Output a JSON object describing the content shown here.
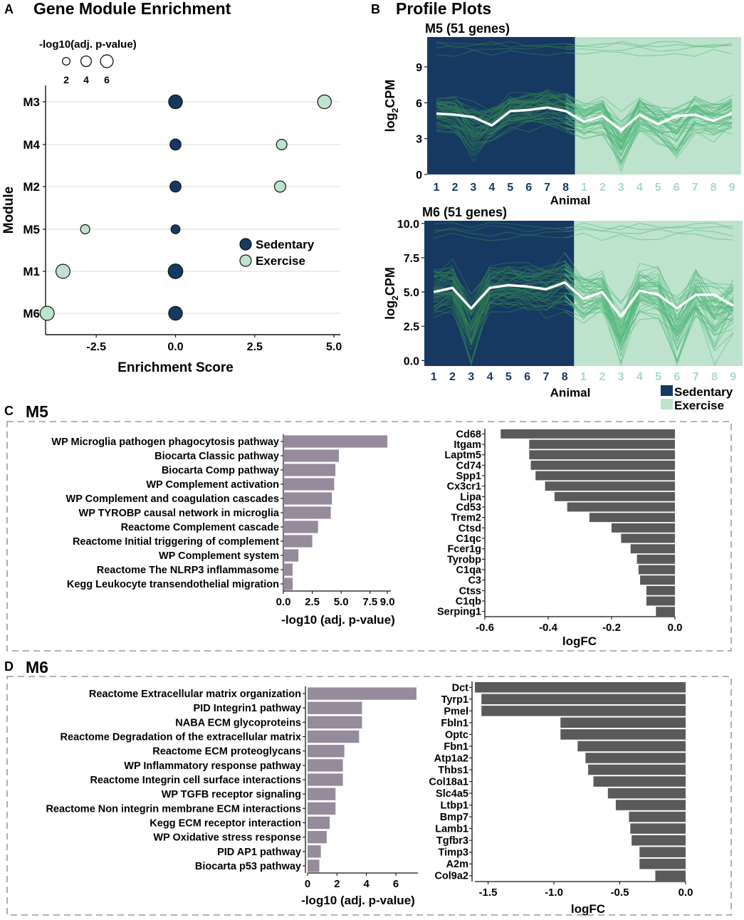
{
  "colors": {
    "sedentary": "#173861",
    "exercise": "#bde3cd",
    "line_sed": "#2f7d54",
    "line_ex": "#52b77a",
    "mean": "#ffffff",
    "pathway_bar": "#958b9c",
    "logfc_bar": "#5a5a5a",
    "grid": "#e6e6e6"
  },
  "panels": {
    "a": {
      "letter": "A",
      "title": "Gene Module Enrichment"
    },
    "b": {
      "letter": "B",
      "title": "Profile Plots"
    },
    "c": {
      "letter": "C",
      "title": "M5"
    },
    "d": {
      "letter": "D",
      "title": "M6"
    }
  },
  "chart_data": [
    {
      "id": "enrichment",
      "type": "scatter",
      "title": "Gene Module Enrichment",
      "xlabel": "Enrichment Score",
      "ylabel": "Module",
      "xlim": [
        -4.1,
        5.2
      ],
      "xticks": [
        "-2.5",
        "0.0",
        "2.5",
        "5.0"
      ],
      "xtick_values": [
        -2.5,
        0,
        2.5,
        5
      ],
      "categories": [
        "M3",
        "M4",
        "M2",
        "M5",
        "M1",
        "M6"
      ],
      "size_legend": {
        "title": "-log10(adj. p-value)",
        "labels": [
          "2",
          "4",
          "6"
        ],
        "values": [
          2,
          4,
          6
        ]
      },
      "legend": {
        "entries": [
          "Sedentary",
          "Exercise"
        ],
        "position": "right-middle"
      },
      "series": [
        {
          "name": "Sedentary",
          "points": [
            {
              "module": "M3",
              "score": 0,
              "neglog10p": 7.0
            },
            {
              "module": "M4",
              "score": 0,
              "neglog10p": 4.4
            },
            {
              "module": "M2",
              "score": 0,
              "neglog10p": 4.4
            },
            {
              "module": "M5",
              "score": 0,
              "neglog10p": 2.8
            },
            {
              "module": "M1",
              "score": 0,
              "neglog10p": 8.0
            },
            {
              "module": "M6",
              "score": 0,
              "neglog10p": 7.0
            }
          ]
        },
        {
          "name": "Exercise",
          "points": [
            {
              "module": "M3",
              "score": 4.7,
              "neglog10p": 7.0
            },
            {
              "module": "M4",
              "score": 3.35,
              "neglog10p": 4.0
            },
            {
              "module": "M2",
              "score": 3.3,
              "neglog10p": 4.6
            },
            {
              "module": "M5",
              "score": -2.85,
              "neglog10p": 3.0
            },
            {
              "module": "M1",
              "score": -3.55,
              "neglog10p": 7.5
            },
            {
              "module": "M6",
              "score": -4.05,
              "neglog10p": 7.5
            }
          ]
        }
      ]
    },
    {
      "id": "m5_profile",
      "type": "line",
      "title": "M5 (51 genes)",
      "xlabel": "Animal",
      "ylabel_main": "log",
      "ylabel_sub": "2",
      "ylabel_end": "CPM",
      "ylim": [
        0,
        11.5
      ],
      "yticks": [
        "0",
        "3",
        "6",
        "9"
      ],
      "ytick_values": [
        0,
        3,
        6,
        9
      ],
      "categories": [
        "1",
        "2",
        "3",
        "4",
        "5",
        "6",
        "7",
        "8",
        "1",
        "2",
        "3",
        "4",
        "5",
        "6",
        "7",
        "8",
        "9"
      ],
      "groups": [
        "Sedentary",
        "Sedentary",
        "Sedentary",
        "Sedentary",
        "Sedentary",
        "Sedentary",
        "Sedentary",
        "Sedentary",
        "Exercise",
        "Exercise",
        "Exercise",
        "Exercise",
        "Exercise",
        "Exercise",
        "Exercise",
        "Exercise",
        "Exercise"
      ],
      "mean": [
        5.1,
        5.0,
        4.8,
        4.1,
        5.3,
        5.4,
        5.6,
        5.3,
        4.4,
        4.9,
        3.7,
        5.0,
        4.2,
        4.9,
        5.0,
        4.5,
        5.1
      ],
      "gene_count": 51
    },
    {
      "id": "m6_profile",
      "type": "line",
      "title": "M6 (51 genes)",
      "xlabel": "Animal",
      "ylabel_main": "log",
      "ylabel_sub": "2",
      "ylabel_end": "CPM",
      "ylim": [
        -0.4,
        10.2
      ],
      "yticks": [
        "0.0",
        "2.5",
        "5.0",
        "7.5",
        "10.0"
      ],
      "ytick_values": [
        0,
        2.5,
        5,
        7.5,
        10
      ],
      "categories": [
        "1",
        "2",
        "3",
        "4",
        "5",
        "6",
        "7",
        "8",
        "1",
        "2",
        "3",
        "4",
        "5",
        "6",
        "7",
        "8",
        "9"
      ],
      "groups": [
        "Sedentary",
        "Sedentary",
        "Sedentary",
        "Sedentary",
        "Sedentary",
        "Sedentary",
        "Sedentary",
        "Sedentary",
        "Exercise",
        "Exercise",
        "Exercise",
        "Exercise",
        "Exercise",
        "Exercise",
        "Exercise",
        "Exercise",
        "Exercise"
      ],
      "mean": [
        5.0,
        5.3,
        3.8,
        5.3,
        5.5,
        5.4,
        5.2,
        5.7,
        4.5,
        5.0,
        3.2,
        5.1,
        4.8,
        3.8,
        4.8,
        4.8,
        4.0
      ],
      "gene_count": 51,
      "legend": {
        "entries": [
          "Sedentary",
          "Exercise"
        ],
        "position": "bottom-right"
      }
    },
    {
      "id": "m5_pathways",
      "type": "bar",
      "orientation": "horizontal",
      "xlabel": "-log10 (adj. p-value)",
      "xlim": [
        0,
        9.3
      ],
      "xticks": [
        "0.0",
        "2.5",
        "5.0",
        "7.5",
        "9.0"
      ],
      "xtick_values": [
        0,
        2.5,
        5,
        7.5,
        9
      ],
      "categories": [
        "WP Microglia pathogen phagocytosis pathway",
        "Biocarta Classic pathway",
        "Biocarta Comp pathway",
        "WP Complement activation",
        "WP Complement and coagulation cascades",
        "WP TYROBP causal network in microglia",
        "Reactome Complement cascade",
        "Reactome Initial triggering of complement",
        "WP Complement system",
        "Reactome The NLRP3 inflammasome",
        "Kegg Leukocyte transendothelial migration"
      ],
      "values": [
        9.0,
        4.8,
        4.5,
        4.4,
        4.2,
        4.1,
        3.0,
        2.5,
        1.3,
        0.8,
        0.8
      ]
    },
    {
      "id": "m5_logfc",
      "type": "bar",
      "orientation": "horizontal",
      "xlabel": "logFC",
      "xlim": [
        -0.6,
        0.0
      ],
      "xticks": [
        "-0.6",
        "-0.4",
        "-0.2",
        "0.0"
      ],
      "xtick_values": [
        -0.6,
        -0.4,
        -0.2,
        0
      ],
      "categories": [
        "Cd68",
        "Itgam",
        "Laptm5",
        "Cd74",
        "Spp1",
        "Cx3cr1",
        "Lipa",
        "Cd53",
        "Trem2",
        "Ctsd",
        "C1qc",
        "Fcer1g",
        "Tyrobp",
        "C1qa",
        "C3",
        "Ctss",
        "C1qb",
        "Serping1"
      ],
      "values": [
        -0.55,
        -0.46,
        -0.46,
        -0.455,
        -0.44,
        -0.41,
        -0.38,
        -0.34,
        -0.27,
        -0.2,
        -0.17,
        -0.14,
        -0.12,
        -0.115,
        -0.11,
        -0.09,
        -0.09,
        -0.06
      ]
    },
    {
      "id": "m6_pathways",
      "type": "bar",
      "orientation": "horizontal",
      "xlabel": "-log10 (adj. p-value)",
      "xlim": [
        0,
        7.5
      ],
      "xticks": [
        "0",
        "2",
        "4",
        "6"
      ],
      "xtick_values": [
        0,
        2,
        4,
        6
      ],
      "categories": [
        "Reactome Extracellular matrix organization",
        "PID Integrin1 pathway",
        "NABA ECM glycoproteins",
        "Reactome Degradation of the extracellular matrix",
        "Reactome ECM proteoglycans",
        "WP Inflammatory response pathway",
        "Reactome Integrin cell surface interactions",
        "WP TGFB receptor signaling",
        "Reactome Non integrin membrane ECM interactions",
        "Kegg ECM receptor interaction",
        "WP Oxidative stress response",
        "PID AP1 pathway",
        "Biocarta p53 pathway"
      ],
      "values": [
        7.4,
        3.7,
        3.7,
        3.5,
        2.5,
        2.4,
        2.4,
        1.9,
        1.9,
        1.5,
        1.3,
        0.9,
        0.8
      ]
    },
    {
      "id": "m6_logfc",
      "type": "bar",
      "orientation": "horizontal",
      "xlabel": "logFC",
      "xlim": [
        -1.6,
        0.0
      ],
      "xticks": [
        "-1.5",
        "-1.0",
        "-0.5",
        "0.0"
      ],
      "xtick_values": [
        -1.5,
        -1.0,
        -0.5,
        0
      ],
      "categories": [
        "Dct",
        "Tyrp1",
        "Pmel",
        "Fbln1",
        "Optc",
        "Fbn1",
        "Atp1a2",
        "Thbs1",
        "Col18a1",
        "Slc4a5",
        "Ltbp1",
        "Bmp7",
        "Lamb1",
        "Tgfbr3",
        "Timp3",
        "A2m",
        "Col9a2"
      ],
      "values": [
        -1.6,
        -1.55,
        -1.55,
        -0.95,
        -0.95,
        -0.82,
        -0.76,
        -0.74,
        -0.7,
        -0.59,
        -0.53,
        -0.43,
        -0.42,
        -0.41,
        -0.35,
        -0.35,
        -0.23
      ]
    }
  ]
}
